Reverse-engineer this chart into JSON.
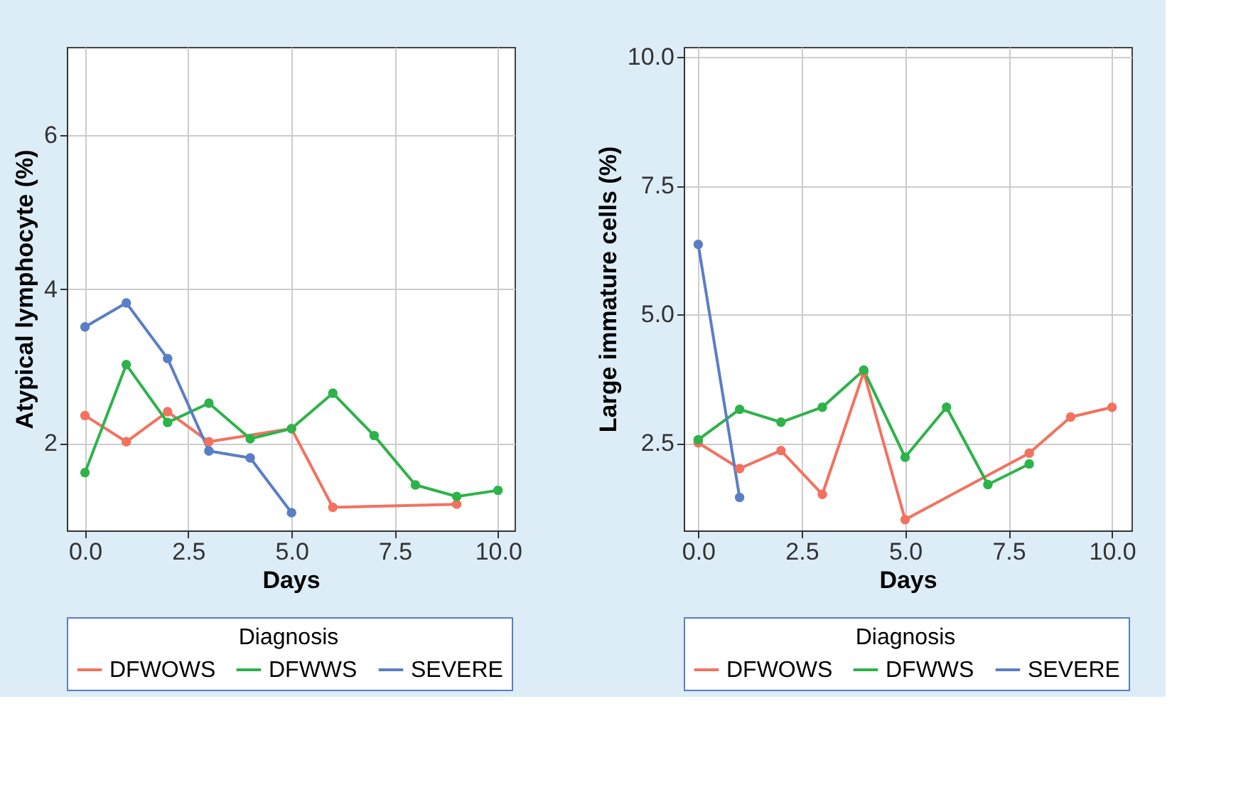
{
  "chart_data": [
    {
      "type": "line",
      "xlabel": "Days",
      "ylabel": "Atypical lymphocyte (%)",
      "legend_title": "Diagnosis",
      "legend": "bottom",
      "marker": "circle",
      "grid": true,
      "xlim": [
        -0.44,
        10.4
      ],
      "ylim": [
        0.87,
        7.14
      ],
      "xticks": [
        {
          "value": 0,
          "label": "0.0"
        },
        {
          "value": 2.5,
          "label": "2.5"
        },
        {
          "value": 5,
          "label": "5.0"
        },
        {
          "value": 7.5,
          "label": "7.5"
        },
        {
          "value": 10,
          "label": "10.0"
        }
      ],
      "yticks": [
        {
          "value": 2,
          "label": "2"
        },
        {
          "value": 4,
          "label": "4"
        },
        {
          "value": 6,
          "label": "6"
        }
      ],
      "series": [
        {
          "name": "DFWOWS",
          "color": "#f2725f",
          "x": [
            0,
            1,
            2,
            3,
            5,
            6,
            9
          ],
          "values": [
            2.36,
            2.02,
            2.41,
            2.02,
            2.19,
            1.17,
            1.21
          ]
        },
        {
          "name": "DFWWS",
          "color": "#2db34a",
          "x": [
            0,
            1,
            2,
            3,
            4,
            5,
            6,
            7,
            8,
            9,
            10
          ],
          "values": [
            1.62,
            3.02,
            2.27,
            2.52,
            2.06,
            2.19,
            2.65,
            2.1,
            1.46,
            1.31,
            1.39
          ]
        },
        {
          "name": "SEVERE",
          "color": "#5a7ec6",
          "x": [
            0,
            1,
            2,
            3,
            4,
            5
          ],
          "values": [
            3.51,
            3.82,
            3.1,
            1.9,
            1.81,
            1.1
          ]
        }
      ]
    },
    {
      "type": "line",
      "xlabel": "Days",
      "ylabel": "Large immature cells (%)",
      "legend_title": "Diagnosis",
      "legend": "bottom",
      "marker": "circle",
      "grid": true,
      "xlim": [
        -0.35,
        10.47
      ],
      "ylim": [
        0.81,
        10.19
      ],
      "xticks": [
        {
          "value": 0,
          "label": "0.0"
        },
        {
          "value": 2.5,
          "label": "2.5"
        },
        {
          "value": 5,
          "label": "5.0"
        },
        {
          "value": 7.5,
          "label": "7.5"
        },
        {
          "value": 10,
          "label": "10.0"
        }
      ],
      "yticks": [
        {
          "value": 2.5,
          "label": "2.5"
        },
        {
          "value": 5,
          "label": "5.0"
        },
        {
          "value": 7.5,
          "label": "7.5"
        },
        {
          "value": 10,
          "label": "10.0"
        }
      ],
      "series": [
        {
          "name": "DFWOWS",
          "color": "#f2725f",
          "x": [
            0,
            1,
            2,
            3,
            4,
            5,
            8,
            9,
            10
          ],
          "values": [
            2.51,
            2.01,
            2.36,
            1.51,
            3.88,
            1.02,
            2.31,
            3.01,
            3.2
          ]
        },
        {
          "name": "DFWWS",
          "color": "#2db34a",
          "x": [
            0,
            1,
            2,
            3,
            4,
            5,
            6,
            7,
            8
          ],
          "values": [
            2.57,
            3.16,
            2.91,
            3.2,
            3.92,
            2.23,
            3.2,
            1.7,
            2.1
          ]
        },
        {
          "name": "SEVERE",
          "color": "#5a7ec6",
          "x": [
            0,
            1
          ],
          "values": [
            6.36,
            1.45
          ]
        }
      ]
    }
  ]
}
